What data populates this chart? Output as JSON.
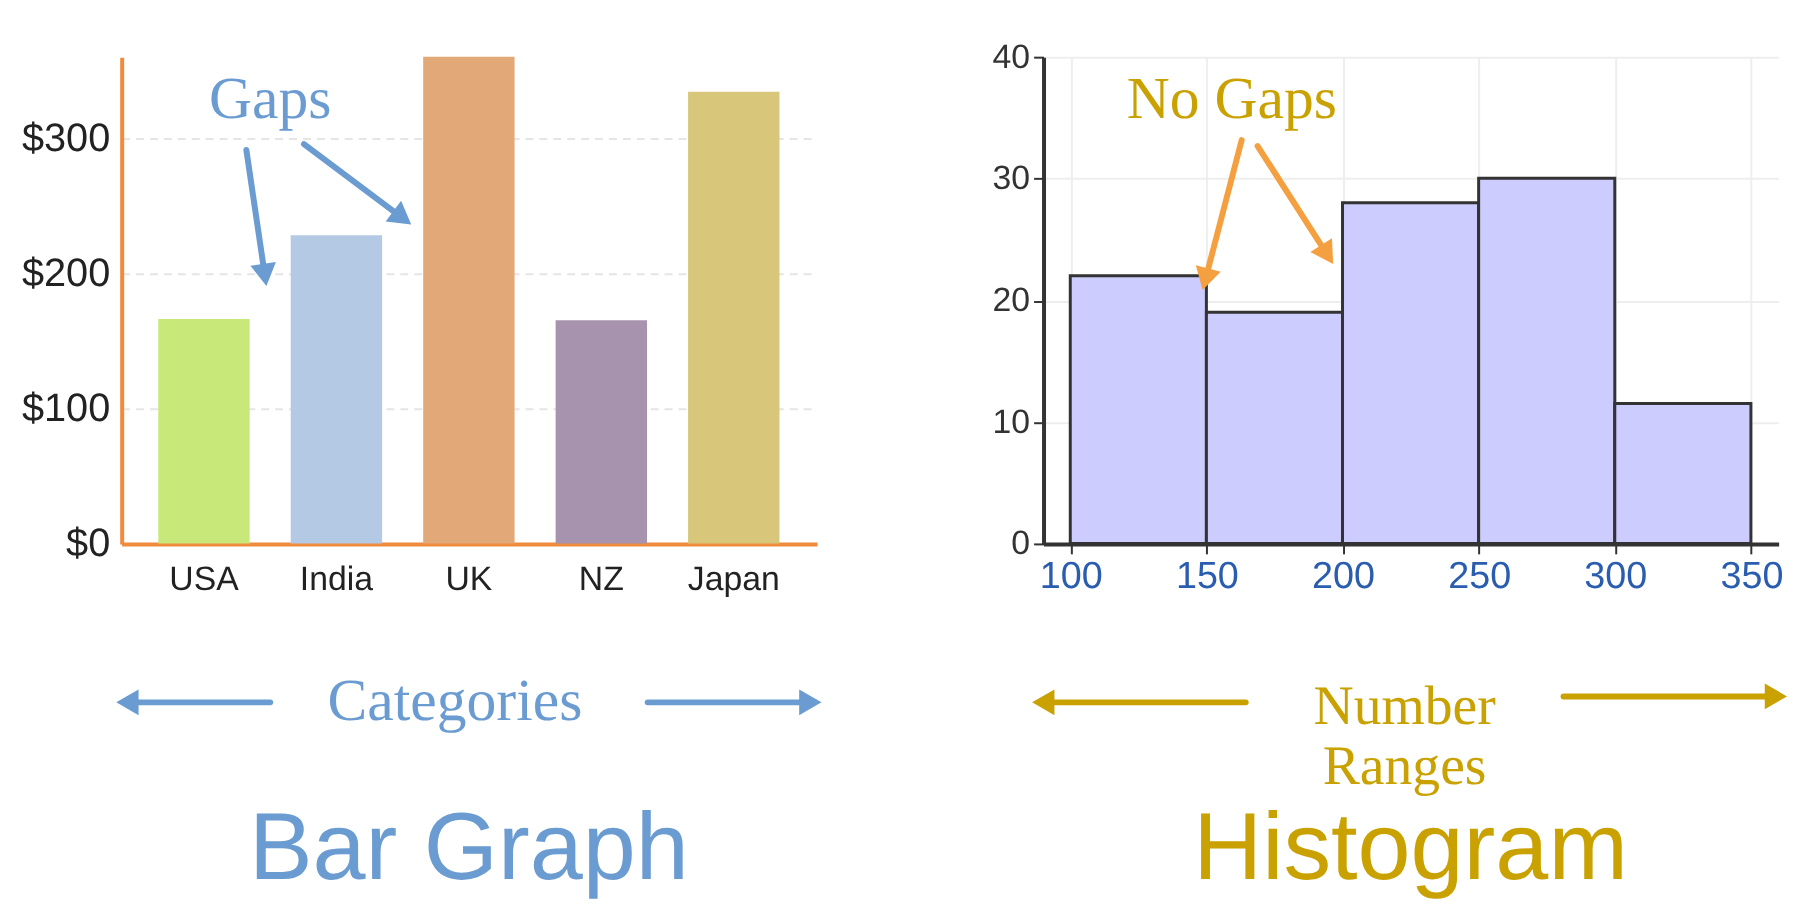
{
  "chart_data": [
    {
      "type": "bar",
      "title": "Bar Graph",
      "categories": [
        "USA",
        "India",
        "UK",
        "NZ",
        "Japan"
      ],
      "values": [
        166,
        228,
        360,
        165,
        334
      ],
      "colors": [
        "#c8e87a",
        "#b4c9e4",
        "#e3a878",
        "#a893ae",
        "#d8c77a"
      ],
      "ylim": [
        0,
        360
      ],
      "yticks": [
        {
          "value": 0,
          "label": "$0"
        },
        {
          "value": 100,
          "label": "$100"
        },
        {
          "value": 200,
          "label": "$200"
        },
        {
          "value": 300,
          "label": "$300"
        }
      ],
      "grid": "y",
      "annotations": [
        "Gaps",
        "Categories"
      ],
      "color": "#6a9bd1"
    },
    {
      "type": "histogram",
      "title": "Histogram",
      "bins": [
        100,
        150,
        200,
        250,
        300,
        350
      ],
      "values": [
        22,
        19,
        28,
        30,
        11.5
      ],
      "color": "#ccccff",
      "xlim": [
        90,
        360
      ],
      "xticks": [
        100,
        150,
        200,
        250,
        300,
        350
      ],
      "ylim": [
        0,
        40
      ],
      "yticks": [
        0,
        10,
        20,
        30,
        40
      ],
      "grid": true,
      "annotations": [
        {
          "text": "No Gaps",
          "x": 150,
          "y": 22
        },
        "Number Ranges"
      ]
    }
  ]
}
